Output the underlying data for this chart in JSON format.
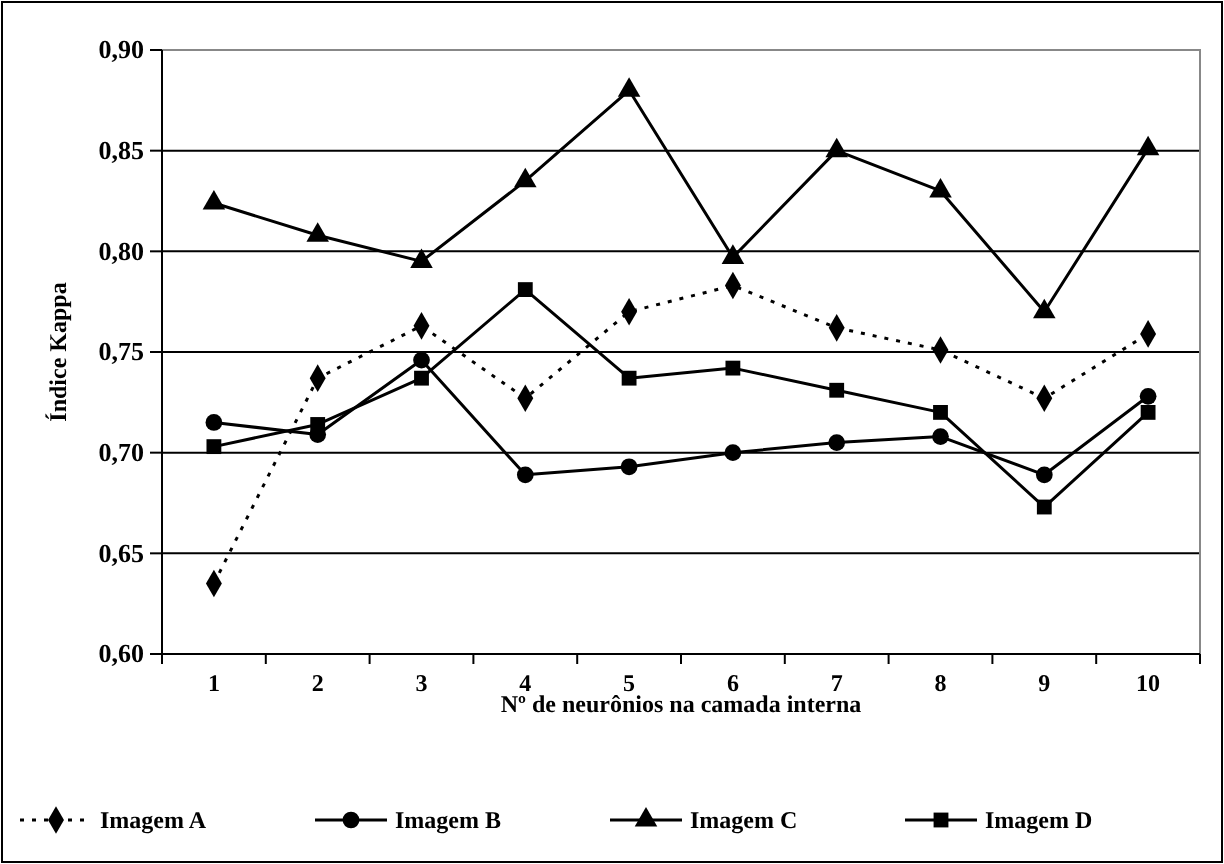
{
  "chart_data": {
    "type": "line",
    "xlabel": "Nº de neurônios na camada interna",
    "ylabel": "Índice Kappa",
    "categories": [
      "1",
      "2",
      "3",
      "4",
      "5",
      "6",
      "7",
      "8",
      "9",
      "10"
    ],
    "ylim": [
      0.6,
      0.9
    ],
    "yticks": [
      {
        "value": 0.6,
        "label": "0,60"
      },
      {
        "value": 0.65,
        "label": "0,65"
      },
      {
        "value": 0.7,
        "label": "0,70"
      },
      {
        "value": 0.75,
        "label": "0,75"
      },
      {
        "value": 0.8,
        "label": "0,80"
      },
      {
        "value": 0.85,
        "label": "0,85"
      },
      {
        "value": 0.9,
        "label": "0,90"
      }
    ],
    "grid": "y",
    "legend": "bottom",
    "series": [
      {
        "name": "Imagem A",
        "color": "#000000",
        "marker": "diamond",
        "line_style": "dotted",
        "values": [
          0.635,
          0.737,
          0.763,
          0.727,
          0.77,
          0.783,
          0.762,
          0.751,
          0.727,
          0.759
        ]
      },
      {
        "name": "Imagem B",
        "color": "#000000",
        "marker": "circle",
        "line_style": "solid",
        "values": [
          0.715,
          0.709,
          0.746,
          0.689,
          0.693,
          0.7,
          0.705,
          0.708,
          0.689,
          0.728
        ]
      },
      {
        "name": "Imagem C",
        "color": "#000000",
        "marker": "triangle",
        "line_style": "solid",
        "values": [
          0.824,
          0.808,
          0.795,
          0.835,
          0.88,
          0.797,
          0.85,
          0.83,
          0.77,
          0.851
        ]
      },
      {
        "name": "Imagem D",
        "color": "#000000",
        "marker": "square",
        "line_style": "solid",
        "values": [
          0.703,
          0.714,
          0.737,
          0.781,
          0.737,
          0.742,
          0.731,
          0.72,
          0.673,
          0.72
        ]
      }
    ]
  }
}
